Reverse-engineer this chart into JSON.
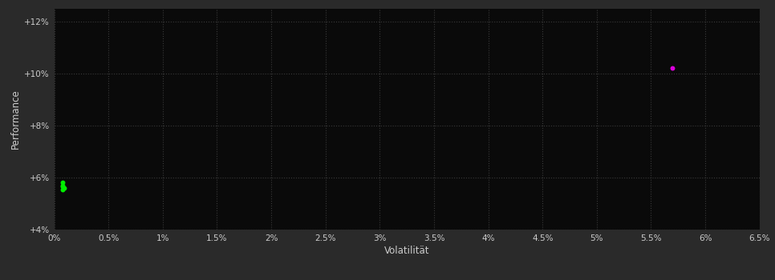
{
  "background_color": "#2a2a2a",
  "plot_bg_color": "#0a0a0a",
  "grid_color": "#3a3a3a",
  "xlabel": "Volatilität",
  "ylabel": "Performance",
  "xlabel_color": "#cccccc",
  "ylabel_color": "#cccccc",
  "tick_color": "#cccccc",
  "xlim": [
    0.0,
    0.065
  ],
  "ylim": [
    0.04,
    0.125
  ],
  "xticks": [
    0.0,
    0.005,
    0.01,
    0.015,
    0.02,
    0.025,
    0.03,
    0.035,
    0.04,
    0.045,
    0.05,
    0.055,
    0.06,
    0.065
  ],
  "yticks": [
    0.04,
    0.06,
    0.08,
    0.1,
    0.12
  ],
  "green_points": [
    [
      0.0008,
      0.057
    ],
    [
      0.0008,
      0.0565
    ],
    [
      0.0008,
      0.0555
    ],
    [
      0.0008,
      0.058
    ],
    [
      0.0009,
      0.056
    ]
  ],
  "magenta_points": [
    [
      0.057,
      0.102
    ]
  ],
  "green_color": "#00ee00",
  "magenta_color": "#dd00dd",
  "point_size": 18
}
